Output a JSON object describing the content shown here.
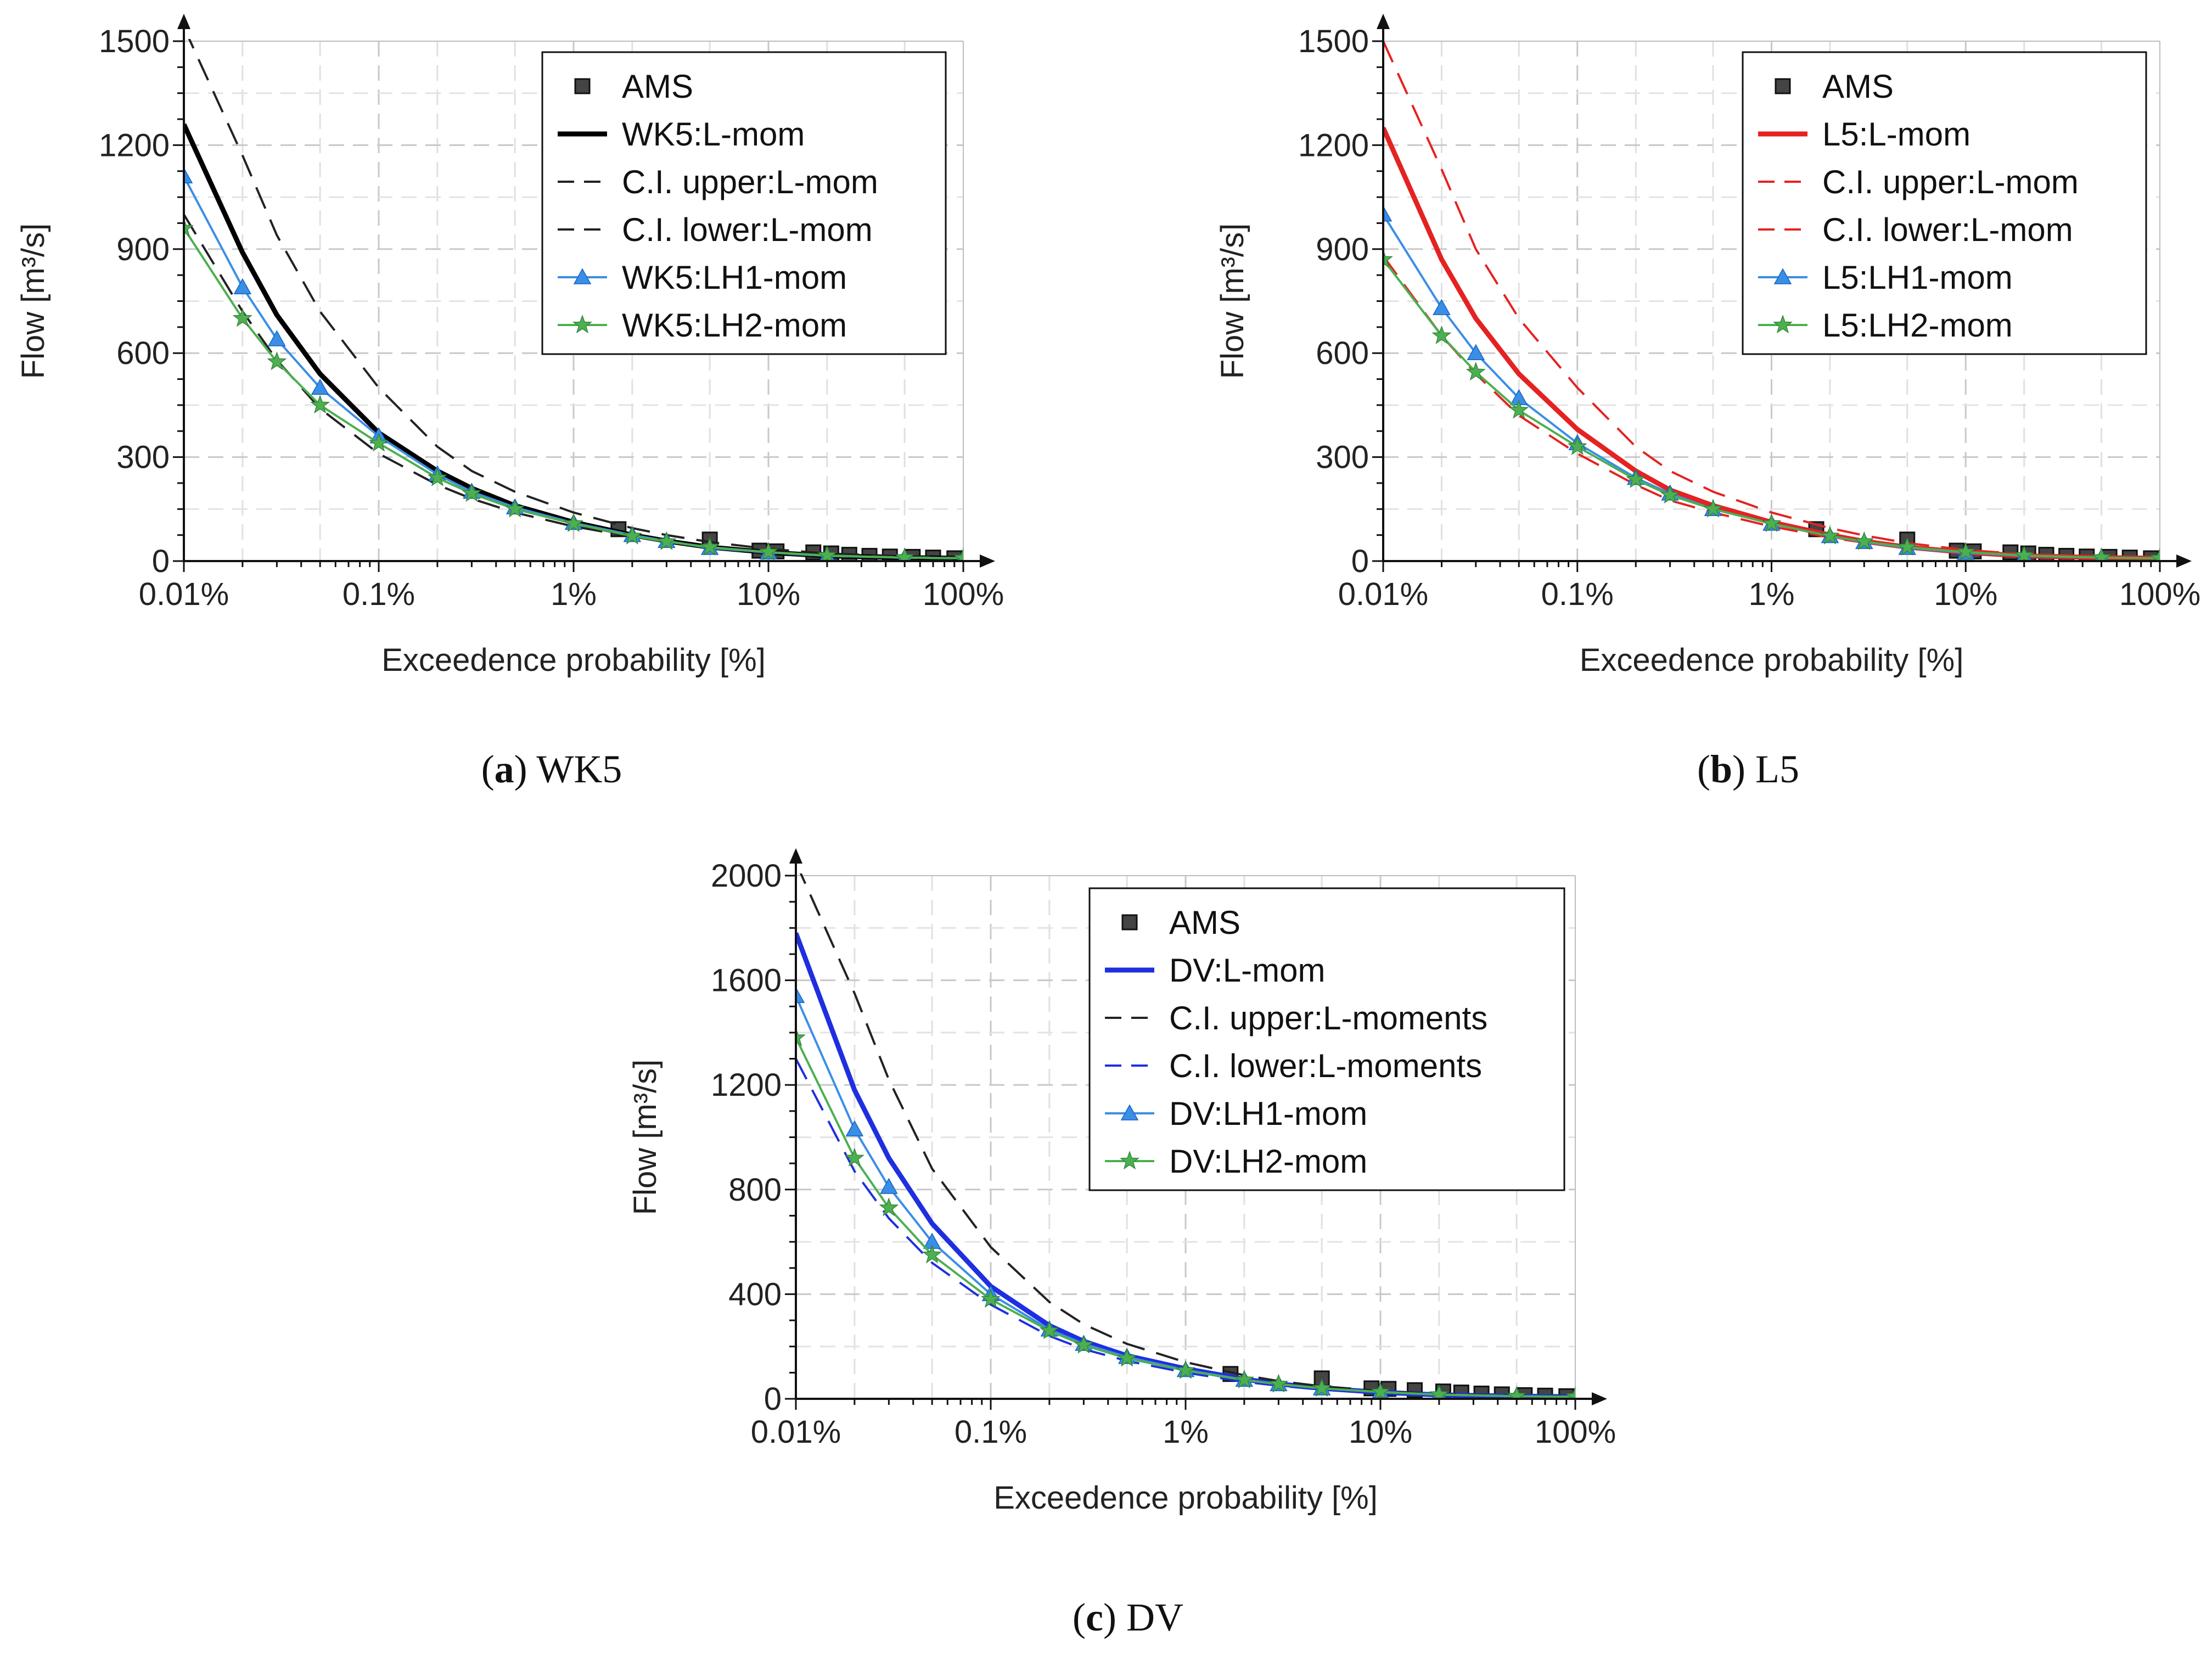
{
  "figure": {
    "panels": [
      "a",
      "b",
      "c"
    ]
  },
  "chart_data": [
    {
      "id": "a",
      "type": "line",
      "caption_letter": "a",
      "caption_text": " WK5",
      "xlabel": "Exceedence probability [%]",
      "ylabel": "Flow [m³/s]",
      "xscale": "log",
      "xlim": [
        0.01,
        100
      ],
      "ylim": [
        0,
        1500
      ],
      "xticks": [
        0.01,
        0.1,
        1,
        10,
        100
      ],
      "xtick_labels": [
        "0.01%",
        "0.1%",
        "1%",
        "10%",
        "100%"
      ],
      "yticks": [
        0,
        300,
        600,
        900,
        1200,
        1500
      ],
      "ytick_labels": [
        "0",
        "300",
        "600",
        "900",
        "1200",
        "1500"
      ],
      "grid": true,
      "legend_position": "top-right",
      "series": [
        {
          "name": "AMS",
          "style": "markers",
          "marker": "square",
          "color": "#404040",
          "x": [
            1.7,
            5,
            9,
            11,
            17,
            21,
            26,
            33,
            42,
            55,
            70,
            90
          ],
          "y": [
            92,
            62,
            30,
            28,
            25,
            22,
            18,
            15,
            13,
            12,
            10,
            8
          ]
        },
        {
          "name": "WK5:L-mom",
          "style": "solid-thick",
          "color": "#000000",
          "x": [
            0.01,
            0.02,
            0.03,
            0.05,
            0.1,
            0.2,
            0.3,
            0.5,
            1,
            2,
            3,
            5,
            10,
            20,
            50,
            100
          ],
          "y": [
            1260,
            890,
            710,
            540,
            370,
            260,
            210,
            160,
            112,
            75,
            58,
            40,
            25,
            15,
            10,
            8
          ]
        },
        {
          "name": "C.I. upper:L-mom",
          "style": "dashed",
          "color": "#222222",
          "x": [
            0.01,
            0.02,
            0.03,
            0.05,
            0.1,
            0.2,
            0.3,
            0.5,
            1,
            2,
            3,
            5,
            10,
            20,
            50,
            100
          ],
          "y": [
            1540,
            1170,
            940,
            720,
            500,
            330,
            260,
            200,
            140,
            95,
            75,
            55,
            35,
            22,
            14,
            10
          ]
        },
        {
          "name": "C.I. lower:L-mom",
          "style": "dashed",
          "color": "#222222",
          "x": [
            0.01,
            0.02,
            0.03,
            0.05,
            0.1,
            0.2,
            0.3,
            0.5,
            1,
            2,
            3,
            5,
            10,
            20,
            50,
            100
          ],
          "y": [
            1000,
            720,
            580,
            440,
            310,
            220,
            180,
            140,
            100,
            70,
            55,
            38,
            22,
            14,
            9,
            6
          ]
        },
        {
          "name": "WK5:LH1-mom",
          "style": "solid-marker",
          "marker": "triangle",
          "color": "#3a8ee6",
          "x": [
            0.01,
            0.02,
            0.03,
            0.05,
            0.1,
            0.2,
            0.3,
            0.5,
            1,
            2,
            3,
            5,
            10,
            20,
            50,
            100
          ],
          "y": [
            1110,
            790,
            640,
            500,
            360,
            250,
            200,
            155,
            110,
            75,
            58,
            38,
            25,
            15,
            10,
            8
          ]
        },
        {
          "name": "WK5:LH2-mom",
          "style": "solid-marker",
          "marker": "star",
          "color": "#4caf50",
          "x": [
            0.01,
            0.02,
            0.03,
            0.05,
            0.1,
            0.2,
            0.3,
            0.5,
            1,
            2,
            3,
            5,
            10,
            20,
            50,
            100
          ],
          "y": [
            960,
            700,
            575,
            450,
            340,
            240,
            195,
            150,
            108,
            72,
            56,
            40,
            26,
            16,
            10,
            8
          ]
        }
      ]
    },
    {
      "id": "b",
      "type": "line",
      "caption_letter": "b",
      "caption_text": " L5",
      "xlabel": "Exceedence probability [%]",
      "ylabel": "Flow [m³/s]",
      "xscale": "log",
      "xlim": [
        0.01,
        100
      ],
      "ylim": [
        0,
        1500
      ],
      "xticks": [
        0.01,
        0.1,
        1,
        10,
        100
      ],
      "xtick_labels": [
        "0.01%",
        "0.1%",
        "1%",
        "10%",
        "100%"
      ],
      "yticks": [
        0,
        300,
        600,
        900,
        1200,
        1500
      ],
      "ytick_labels": [
        "0",
        "300",
        "600",
        "900",
        "1200",
        "1500"
      ],
      "grid": true,
      "legend_position": "top-right",
      "series": [
        {
          "name": "AMS",
          "style": "markers",
          "marker": "square",
          "color": "#404040",
          "x": [
            1.7,
            5,
            9,
            11,
            17,
            21,
            26,
            33,
            42,
            55,
            70,
            90
          ],
          "y": [
            92,
            62,
            30,
            28,
            25,
            22,
            18,
            15,
            13,
            12,
            10,
            8
          ]
        },
        {
          "name": "L5:L-mom",
          "style": "solid-thick",
          "color": "#e52222",
          "x": [
            0.01,
            0.02,
            0.03,
            0.05,
            0.1,
            0.2,
            0.3,
            0.5,
            1,
            2,
            3,
            5,
            10,
            20,
            50,
            100
          ],
          "y": [
            1250,
            870,
            700,
            540,
            380,
            260,
            205,
            160,
            112,
            75,
            57,
            40,
            25,
            15,
            10,
            8
          ]
        },
        {
          "name": "C.I. upper:L-mom",
          "style": "dashed",
          "color": "#e52222",
          "x": [
            0.01,
            0.02,
            0.03,
            0.05,
            0.1,
            0.2,
            0.3,
            0.5,
            1,
            2,
            3,
            5,
            10,
            20,
            50,
            100
          ],
          "y": [
            1500,
            1130,
            900,
            700,
            500,
            330,
            260,
            200,
            140,
            95,
            74,
            52,
            32,
            20,
            13,
            10
          ]
        },
        {
          "name": "C.I. lower:L-mom",
          "style": "dashed",
          "color": "#e52222",
          "x": [
            0.01,
            0.02,
            0.03,
            0.05,
            0.1,
            0.2,
            0.3,
            0.5,
            1,
            2,
            3,
            5,
            10,
            20,
            50,
            100
          ],
          "y": [
            880,
            650,
            540,
            420,
            310,
            220,
            175,
            140,
            100,
            68,
            53,
            37,
            22,
            13,
            8,
            6
          ]
        },
        {
          "name": "L5:LH1-mom",
          "style": "solid-marker",
          "marker": "triangle",
          "color": "#3a8ee6",
          "x": [
            0.01,
            0.02,
            0.03,
            0.05,
            0.1,
            0.2,
            0.3,
            0.5,
            1,
            2,
            3,
            5,
            10,
            20,
            50,
            100
          ],
          "y": [
            1000,
            730,
            600,
            470,
            340,
            240,
            195,
            150,
            108,
            72,
            55,
            38,
            24,
            15,
            10,
            8
          ]
        },
        {
          "name": "L5:LH2-mom",
          "style": "solid-marker",
          "marker": "star",
          "color": "#4caf50",
          "x": [
            0.01,
            0.02,
            0.03,
            0.05,
            0.1,
            0.2,
            0.3,
            0.5,
            1,
            2,
            3,
            5,
            10,
            20,
            50,
            100
          ],
          "y": [
            870,
            650,
            545,
            435,
            330,
            235,
            190,
            150,
            108,
            72,
            56,
            40,
            26,
            16,
            10,
            8
          ]
        }
      ]
    },
    {
      "id": "c",
      "type": "line",
      "caption_letter": "c",
      "caption_text": " DV",
      "xlabel": "Exceedence probability [%]",
      "ylabel": "Flow [m³/s]",
      "xscale": "log",
      "xlim": [
        0.01,
        100
      ],
      "ylim": [
        0,
        2000
      ],
      "xticks": [
        0.01,
        0.1,
        1,
        10,
        100
      ],
      "xtick_labels": [
        "0.01%",
        "0.1%",
        "1%",
        "10%",
        "100%"
      ],
      "yticks": [
        0,
        400,
        800,
        1200,
        1600,
        2000
      ],
      "ytick_labels": [
        "0",
        "400",
        "800",
        "1200",
        "1600",
        "2000"
      ],
      "grid": true,
      "legend_position": "top-right",
      "series": [
        {
          "name": "AMS",
          "style": "markers",
          "marker": "square",
          "color": "#404040",
          "x": [
            1.7,
            5,
            9,
            11,
            15,
            21,
            26,
            33,
            42,
            55,
            70,
            90
          ],
          "y": [
            95,
            78,
            40,
            38,
            33,
            28,
            24,
            20,
            17,
            14,
            12,
            10
          ]
        },
        {
          "name": "DV:L-mom",
          "style": "solid-thick",
          "color": "#1f2fe0",
          "x": [
            0.01,
            0.02,
            0.03,
            0.05,
            0.1,
            0.2,
            0.3,
            0.5,
            1,
            2,
            3,
            5,
            10,
            20,
            50,
            100
          ],
          "y": [
            1780,
            1180,
            920,
            670,
            430,
            280,
            220,
            165,
            115,
            75,
            57,
            40,
            25,
            15,
            10,
            8
          ]
        },
        {
          "name": "C.I. upper:L-moments",
          "style": "dashed",
          "color": "#222222",
          "x": [
            0.01,
            0.02,
            0.03,
            0.05,
            0.1,
            0.2,
            0.3,
            0.5,
            1,
            2,
            3,
            5,
            10,
            20,
            50,
            100
          ],
          "y": [
            2050,
            1550,
            1220,
            880,
            580,
            370,
            285,
            210,
            140,
            90,
            68,
            48,
            30,
            18,
            12,
            9
          ]
        },
        {
          "name": "C.I. lower:L-moments",
          "style": "dashed",
          "color": "#1f2fe0",
          "x": [
            0.01,
            0.02,
            0.03,
            0.05,
            0.1,
            0.2,
            0.3,
            0.5,
            1,
            2,
            3,
            5,
            10,
            20,
            50,
            100
          ],
          "y": [
            1300,
            870,
            690,
            520,
            360,
            240,
            190,
            145,
            100,
            65,
            50,
            35,
            22,
            13,
            8,
            6
          ]
        },
        {
          "name": "DV:LH1-mom",
          "style": "solid-marker",
          "marker": "triangle",
          "color": "#3a8ee6",
          "x": [
            0.01,
            0.02,
            0.03,
            0.05,
            0.1,
            0.2,
            0.3,
            0.5,
            1,
            2,
            3,
            5,
            10,
            20,
            50,
            100
          ],
          "y": [
            1540,
            1030,
            810,
            600,
            400,
            265,
            210,
            160,
            110,
            73,
            56,
            40,
            26,
            16,
            10,
            8
          ]
        },
        {
          "name": "DV:LH2-mom",
          "style": "solid-marker",
          "marker": "star",
          "color": "#4caf50",
          "x": [
            0.01,
            0.02,
            0.03,
            0.05,
            0.1,
            0.2,
            0.3,
            0.5,
            1,
            2,
            3,
            5,
            10,
            20,
            50,
            100
          ],
          "y": [
            1380,
            920,
            730,
            550,
            380,
            260,
            205,
            155,
            108,
            72,
            56,
            40,
            26,
            16,
            10,
            8
          ]
        }
      ]
    }
  ]
}
